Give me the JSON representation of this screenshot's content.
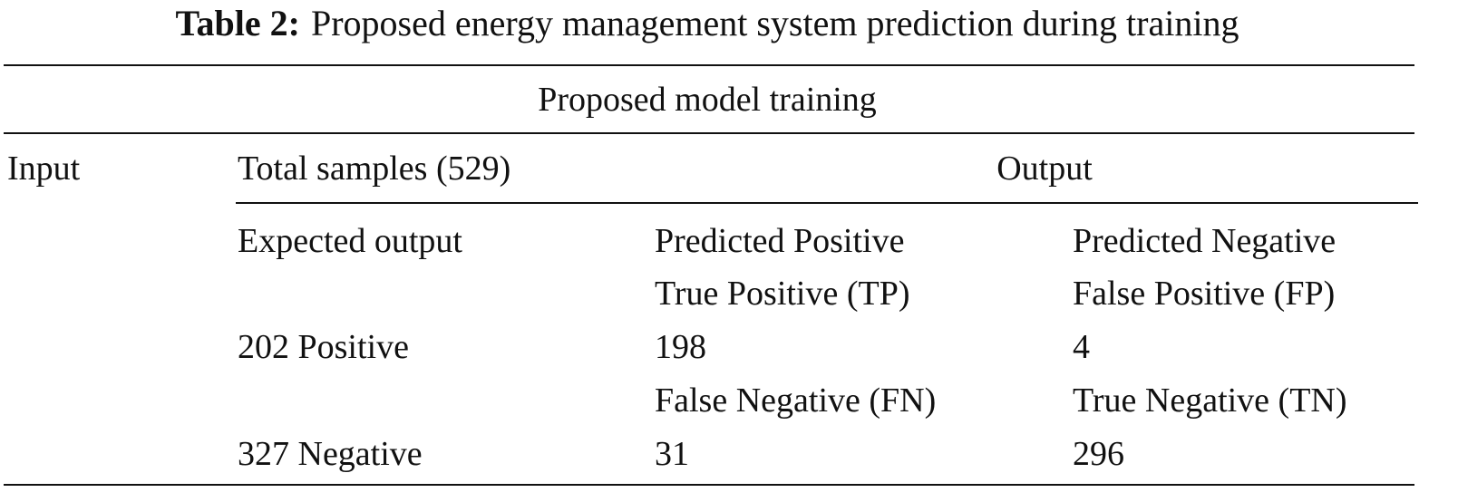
{
  "caption": {
    "label": "Table 2:",
    "text": "Proposed energy management system prediction during training"
  },
  "table": {
    "spanner": "Proposed model training",
    "header": [
      "Input",
      "Total samples (529)",
      "Output"
    ],
    "rows": [
      [
        "Expected output",
        "Predicted Positive",
        "Predicted Negative"
      ],
      [
        null,
        "True Positive (TP)",
        "False Positive (FP)"
      ],
      [
        "202 Positive",
        198,
        4
      ],
      [
        null,
        "False Negative (FN)",
        "True Negative (TN)"
      ],
      [
        "327 Negative",
        31,
        296
      ]
    ]
  }
}
